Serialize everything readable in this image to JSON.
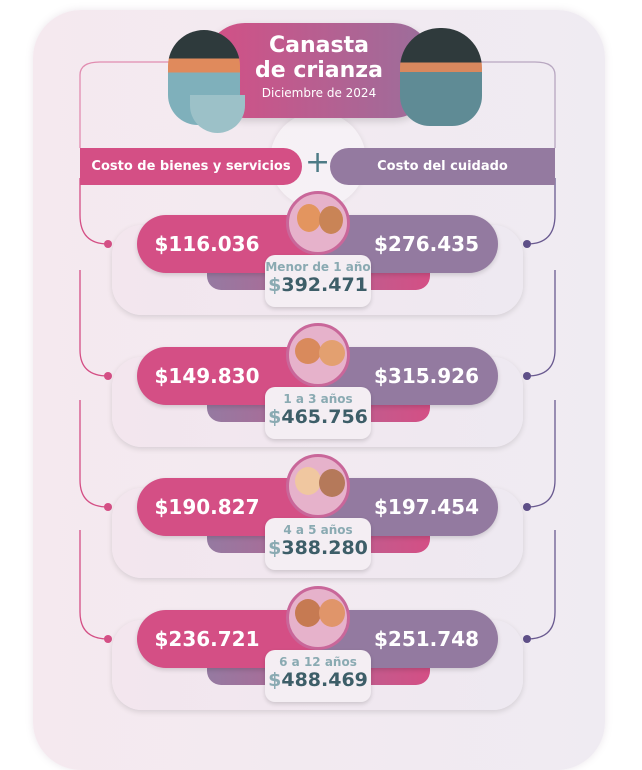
{
  "header": {
    "title_line1": "Canasta",
    "title_line2": "de crianza",
    "subtitle": "Diciembre de 2024"
  },
  "categories": {
    "left": "Costo de bienes y servicios",
    "plus": "+",
    "right": "Costo del cuidado"
  },
  "rows": [
    {
      "age": "Menor de 1 año",
      "goods": "$116.036",
      "care": "$276.435",
      "total": "392.471"
    },
    {
      "age": "1 a 3 años",
      "goods": "$149.830",
      "care": "$315.926",
      "total": "465.756"
    },
    {
      "age": "4 a 5 años",
      "goods": "$190.827",
      "care": "$197.454",
      "total": "388.280"
    },
    {
      "age": "6 a 12 años",
      "goods": "$236.721",
      "care": "$251.748",
      "total": "488.469"
    }
  ],
  "currency": "$",
  "colors": {
    "pink": "#d44f85",
    "purple": "#937aa0",
    "teal": "#3d5e68"
  }
}
